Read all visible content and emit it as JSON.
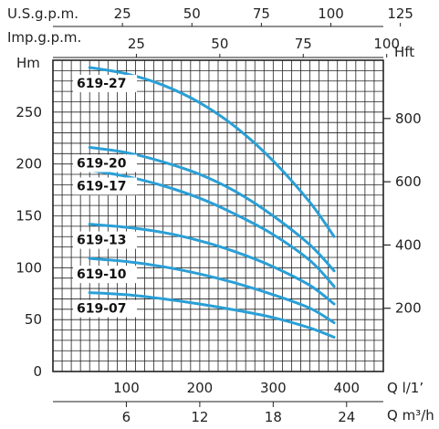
{
  "chart_data": {
    "type": "line",
    "axes": {
      "left": {
        "label": "Hm",
        "ticks": [
          "0",
          "50",
          "100",
          "150",
          "200",
          "250"
        ],
        "range": [
          0,
          300
        ]
      },
      "right": {
        "label": "Hft",
        "ticks": [
          "200",
          "400",
          "600",
          "800"
        ],
        "range": [
          0,
          984
        ]
      },
      "bottom": {
        "label": "Q l/1’",
        "ticks": [
          "100",
          "200",
          "300",
          "400"
        ],
        "range": [
          0,
          450
        ]
      },
      "bottom2": {
        "label": "Q m³/h",
        "ticks": [
          "6",
          "12",
          "18",
          "24"
        ],
        "range": [
          0,
          27
        ]
      },
      "top1": {
        "label": "U.S.g.p.m.",
        "ticks": [
          "25",
          "50",
          "75",
          "100",
          "125"
        ],
        "range": [
          0,
          118.9
        ]
      },
      "top2": {
        "label": "Imp.g.p.m.",
        "ticks": [
          "25",
          "50",
          "75",
          "100"
        ],
        "range": [
          0,
          99
        ]
      }
    },
    "grid": true,
    "series": [
      {
        "name": "619-27",
        "x": [
          50,
          100,
          150,
          200,
          250,
          300,
          350,
          383
        ],
        "y": [
          293,
          287,
          276,
          259,
          235,
          203,
          163,
          130
        ]
      },
      {
        "name": "619-20",
        "x": [
          50,
          100,
          150,
          200,
          250,
          300,
          350,
          383
        ],
        "y": [
          216,
          211,
          202,
          190,
          173,
          150,
          122,
          97
        ]
      },
      {
        "name": "619-17",
        "x": [
          50,
          100,
          150,
          200,
          250,
          300,
          350,
          383
        ],
        "y": [
          194,
          188,
          179,
          167,
          151,
          132,
          107,
          82
        ]
      },
      {
        "name": "619-13",
        "x": [
          50,
          100,
          150,
          200,
          250,
          300,
          350,
          383
        ],
        "y": [
          142,
          139,
          134,
          126,
          115,
          101,
          83,
          65
        ]
      },
      {
        "name": "619-10",
        "x": [
          50,
          100,
          150,
          200,
          250,
          300,
          350,
          383
        ],
        "y": [
          109,
          106,
          101,
          94,
          85,
          74,
          61,
          47
        ]
      },
      {
        "name": "619-07",
        "x": [
          50,
          100,
          150,
          200,
          250,
          300,
          350,
          383
        ],
        "y": [
          76,
          74,
          70,
          65,
          59,
          52,
          42,
          33
        ]
      }
    ],
    "line_color": "#2a9fd6"
  }
}
